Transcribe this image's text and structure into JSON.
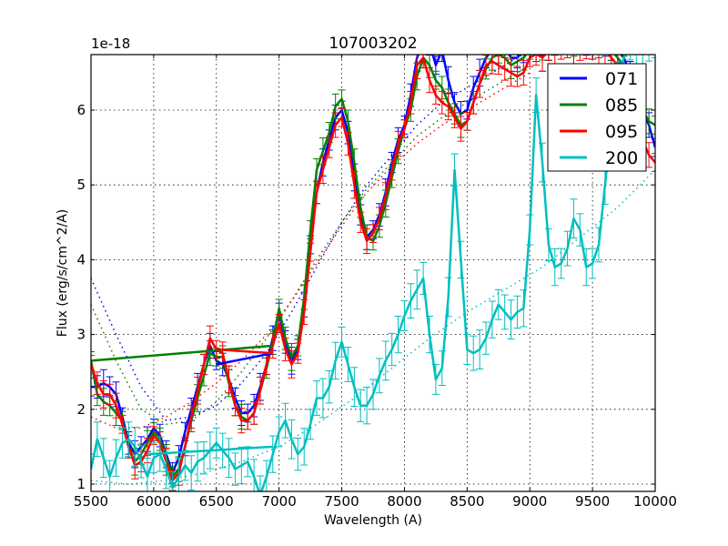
{
  "chart_data": {
    "type": "line",
    "title": "107003202",
    "xlabel": "Wavelength (A)",
    "ylabel": "Flux (erg/s/cm^2/A)",
    "y_offset_label": "1e-18",
    "xlim": [
      5500,
      10000
    ],
    "ylim": [
      0.9,
      6.75
    ],
    "x_ticks": [
      "5500",
      "6000",
      "6500",
      "7000",
      "7500",
      "8000",
      "8500",
      "9000",
      "9500",
      "10000"
    ],
    "y_ticks": [
      "1",
      "2",
      "3",
      "4",
      "5",
      "6"
    ],
    "grid": true,
    "legend_position": "upper right",
    "series": [
      {
        "name": "071",
        "color": "#0000ff",
        "x": [
          5500,
          5550,
          5600,
          5650,
          5700,
          5750,
          5800,
          5850,
          5900,
          5950,
          6000,
          6050,
          6100,
          6150,
          6200,
          6250,
          6300,
          6350,
          6400,
          6450,
          6500,
          6550,
          6600,
          6650,
          6700,
          6750,
          6800,
          6850,
          6900,
          6950,
          7000,
          7050,
          7100,
          7150,
          7200,
          7250,
          7300,
          7350,
          7400,
          7450,
          7500,
          7550,
          7600,
          7650,
          7700,
          7750,
          7800,
          7850,
          7900,
          7950,
          8000,
          8050,
          8100,
          8150,
          8200,
          8250,
          8300,
          8350,
          8400,
          8450,
          8500,
          8550,
          8600,
          8650,
          8700,
          8750,
          8800,
          8850,
          8900,
          8950,
          9000,
          9050,
          9100,
          9150,
          9200,
          9250,
          9300,
          9350,
          9400,
          9450,
          9500,
          9550,
          9600,
          9650,
          9700,
          9750,
          9800,
          9850,
          9900,
          9950,
          10000
        ],
        "y": [
          2.3,
          2.3,
          2.35,
          2.3,
          2.2,
          1.9,
          1.55,
          1.4,
          1.5,
          1.6,
          1.75,
          1.65,
          1.4,
          1.15,
          1.35,
          1.7,
          2.0,
          2.3,
          2.6,
          2.85,
          2.65,
          2.6,
          2.4,
          2.15,
          1.95,
          1.95,
          2.05,
          2.3,
          2.6,
          2.95,
          3.3,
          2.9,
          2.65,
          2.8,
          3.4,
          4.2,
          4.9,
          5.3,
          5.6,
          5.9,
          6.0,
          5.7,
          5.1,
          4.6,
          4.3,
          4.4,
          4.6,
          4.9,
          5.3,
          5.6,
          5.8,
          6.2,
          6.7,
          6.9,
          6.9,
          6.6,
          6.8,
          6.4,
          6.1,
          5.95,
          6.0,
          6.3,
          6.5,
          6.7,
          6.8,
          6.9,
          6.85,
          6.7,
          6.7,
          6.8,
          6.9,
          6.8,
          6.7,
          6.8,
          6.9,
          6.9,
          6.9,
          6.8,
          6.9,
          6.9,
          6.8,
          6.9,
          6.9,
          6.8,
          6.8,
          6.7,
          6.5,
          6.2,
          6.0,
          5.8,
          5.5
        ]
      },
      {
        "name": "085",
        "color": "#008000",
        "x": [
          5500,
          5550,
          5600,
          5650,
          5700,
          5750,
          5800,
          5850,
          5900,
          5950,
          6000,
          6050,
          6100,
          6150,
          6200,
          6250,
          6300,
          6350,
          6400,
          6450,
          6500,
          6550,
          6600,
          6650,
          6700,
          6750,
          6800,
          6850,
          6900,
          6950,
          7000,
          7050,
          7100,
          7150,
          7200,
          7250,
          7300,
          7350,
          7400,
          7450,
          7500,
          7550,
          7600,
          7650,
          7700,
          7750,
          7800,
          7850,
          7900,
          7950,
          8000,
          8050,
          8100,
          8150,
          8200,
          8250,
          8300,
          8350,
          8400,
          8450,
          8500,
          8550,
          8600,
          8650,
          8700,
          8750,
          8800,
          8850,
          8900,
          8950,
          9000,
          9050,
          9100,
          9150,
          9200,
          9250,
          9300,
          9350,
          9400,
          9450,
          9500,
          9550,
          9600,
          9650,
          9700,
          9750,
          9800,
          9850,
          9900,
          9950,
          10000
        ],
        "y": [
          2.65,
          2.2,
          2.1,
          2.05,
          1.95,
          1.85,
          1.5,
          1.3,
          1.4,
          1.55,
          1.7,
          1.6,
          1.35,
          1.1,
          1.2,
          1.5,
          1.85,
          2.15,
          2.45,
          2.75,
          2.7,
          2.7,
          2.35,
          2.05,
          1.9,
          1.85,
          1.95,
          2.25,
          2.55,
          2.9,
          3.35,
          2.95,
          2.7,
          2.85,
          3.5,
          4.4,
          5.2,
          5.45,
          5.7,
          6.05,
          6.15,
          5.85,
          5.3,
          4.7,
          4.3,
          4.25,
          4.45,
          4.75,
          5.1,
          5.45,
          5.75,
          6.0,
          6.45,
          6.7,
          6.6,
          6.4,
          6.3,
          6.1,
          5.95,
          5.8,
          5.85,
          6.1,
          6.35,
          6.55,
          6.7,
          6.75,
          6.7,
          6.6,
          6.65,
          6.7,
          6.8,
          6.8,
          6.85,
          6.8,
          6.9,
          6.9,
          6.95,
          6.9,
          6.9,
          6.95,
          6.9,
          6.85,
          6.95,
          6.8,
          6.7,
          6.6,
          6.4,
          6.2,
          6.0,
          5.85,
          5.8
        ]
      },
      {
        "name": "095",
        "color": "#ff0000",
        "x": [
          5500,
          5550,
          5600,
          5650,
          5700,
          5750,
          5800,
          5850,
          5900,
          5950,
          6000,
          6050,
          6100,
          6150,
          6200,
          6250,
          6300,
          6350,
          6400,
          6450,
          6500,
          6550,
          6600,
          6650,
          6700,
          6750,
          6800,
          6850,
          6900,
          6950,
          7000,
          7050,
          7100,
          7150,
          7200,
          7250,
          7300,
          7350,
          7400,
          7450,
          7500,
          7550,
          7600,
          7650,
          7700,
          7750,
          7800,
          7850,
          7900,
          7950,
          8000,
          8050,
          8100,
          8150,
          8200,
          8250,
          8300,
          8350,
          8400,
          8450,
          8500,
          8550,
          8600,
          8650,
          8700,
          8750,
          8800,
          8850,
          8900,
          8950,
          9000,
          9050,
          9100,
          9150,
          9200,
          9250,
          9300,
          9350,
          9400,
          9450,
          9500,
          9550,
          9600,
          9650,
          9700,
          9750,
          9800,
          9850,
          9900,
          9950,
          10000
        ],
        "y": [
          2.6,
          2.35,
          2.2,
          2.2,
          2.05,
          1.8,
          1.5,
          1.25,
          1.3,
          1.45,
          1.65,
          1.55,
          1.3,
          1.05,
          1.15,
          1.5,
          1.9,
          2.25,
          2.6,
          2.95,
          2.8,
          2.75,
          2.4,
          2.05,
          1.85,
          1.85,
          1.95,
          2.25,
          2.6,
          2.85,
          3.15,
          2.8,
          2.6,
          2.75,
          3.3,
          4.1,
          4.9,
          5.2,
          5.5,
          5.8,
          5.9,
          5.55,
          5.0,
          4.5,
          4.25,
          4.35,
          4.55,
          4.85,
          5.2,
          5.55,
          5.75,
          6.1,
          6.6,
          6.7,
          6.4,
          6.2,
          6.1,
          6.05,
          5.9,
          5.75,
          5.85,
          6.1,
          6.35,
          6.6,
          6.65,
          6.6,
          6.55,
          6.5,
          6.45,
          6.5,
          6.7,
          6.75,
          6.7,
          6.8,
          6.75,
          6.8,
          6.85,
          6.8,
          6.8,
          6.85,
          6.8,
          6.75,
          6.8,
          6.7,
          6.6,
          6.4,
          6.1,
          5.9,
          5.6,
          5.4,
          5.3
        ]
      },
      {
        "name": "200",
        "color": "#00bfbf",
        "x": [
          5500,
          5550,
          5600,
          5650,
          5700,
          5750,
          5800,
          5850,
          5900,
          5950,
          6000,
          6050,
          6100,
          6150,
          6200,
          6250,
          6300,
          6350,
          6400,
          6450,
          6500,
          6550,
          6600,
          6650,
          6700,
          6750,
          6800,
          6850,
          6900,
          6950,
          7000,
          7050,
          7100,
          7150,
          7200,
          7250,
          7300,
          7350,
          7400,
          7450,
          7500,
          7550,
          7600,
          7650,
          7700,
          7750,
          7800,
          7850,
          7900,
          7950,
          8000,
          8050,
          8100,
          8150,
          8200,
          8250,
          8300,
          8350,
          8400,
          8450,
          8500,
          8550,
          8600,
          8650,
          8700,
          8750,
          8800,
          8850,
          8900,
          8950,
          9000,
          9050,
          9100,
          9150,
          9200,
          9250,
          9300,
          9350,
          9400,
          9450,
          9500,
          9550,
          9600,
          9650,
          9700,
          9750,
          9800,
          9850,
          9900,
          9950,
          10000
        ],
        "y": [
          1.2,
          1.6,
          1.35,
          1.1,
          1.35,
          1.55,
          1.6,
          1.5,
          1.3,
          1.1,
          1.35,
          1.4,
          1.2,
          0.95,
          1.1,
          1.25,
          1.15,
          1.3,
          1.35,
          1.45,
          1.55,
          1.45,
          1.35,
          1.2,
          1.25,
          1.3,
          1.1,
          0.85,
          1.1,
          1.4,
          1.7,
          1.85,
          1.6,
          1.4,
          1.5,
          1.8,
          2.15,
          2.15,
          2.3,
          2.65,
          2.9,
          2.6,
          2.3,
          2.05,
          2.05,
          2.2,
          2.45,
          2.65,
          2.8,
          3.0,
          3.25,
          3.45,
          3.6,
          3.75,
          3.0,
          2.4,
          2.55,
          3.5,
          5.2,
          4.0,
          2.8,
          2.75,
          2.8,
          2.95,
          3.2,
          3.4,
          3.3,
          3.2,
          3.3,
          3.35,
          4.4,
          6.2,
          5.3,
          4.2,
          3.9,
          3.95,
          4.15,
          4.55,
          4.4,
          3.9,
          3.95,
          4.2,
          5.0,
          5.8,
          6.4,
          6.7,
          6.9,
          6.8,
          6.75,
          6.9,
          6.9
        ]
      }
    ],
    "fit_curves_dotted": [
      {
        "series": "071",
        "color": "#0000ff",
        "x": [
          5500,
          5700,
          5900,
          6100,
          6300,
          6500,
          6700,
          6900,
          7100,
          7300,
          7500,
          7700,
          7900,
          8100,
          8300,
          8500,
          8700,
          9000
        ],
        "y": [
          3.75,
          3.0,
          2.3,
          1.85,
          1.9,
          2.05,
          2.35,
          2.75,
          3.3,
          3.9,
          4.5,
          5.0,
          5.4,
          5.8,
          6.1,
          6.3,
          6.5,
          6.8
        ]
      },
      {
        "series": "085",
        "color": "#008000",
        "x": [
          5500,
          5700,
          5900,
          6100,
          6300,
          6500,
          6700,
          6900,
          7100,
          7300,
          7500,
          7700,
          7900,
          8100,
          8300,
          8500,
          8700,
          9000
        ],
        "y": [
          3.4,
          2.65,
          2.0,
          1.8,
          1.85,
          2.1,
          2.5,
          2.95,
          3.45,
          4.0,
          4.5,
          4.95,
          5.3,
          5.65,
          5.9,
          6.1,
          6.3,
          6.6
        ]
      },
      {
        "series": "095",
        "color": "#ff0000",
        "x": [
          5500,
          5700,
          5900,
          6100,
          6300,
          6500,
          6700,
          6900,
          7100,
          7300,
          7500,
          7700,
          7900,
          8100,
          8300,
          8500,
          8700,
          9000
        ],
        "y": [
          1.9,
          1.75,
          1.75,
          1.9,
          2.1,
          2.35,
          2.65,
          3.0,
          3.45,
          3.95,
          4.45,
          4.9,
          5.25,
          5.55,
          5.8,
          6.0,
          6.2,
          6.5
        ]
      },
      {
        "series": "200",
        "color": "#00bfbf",
        "x": [
          5500,
          5800,
          6100,
          6400,
          6700,
          7000,
          7300,
          7600,
          7900,
          8200,
          8500,
          8800,
          9100,
          9400,
          9700,
          10000
        ],
        "y": [
          1.05,
          1.0,
          1.05,
          1.15,
          1.3,
          1.5,
          1.8,
          2.15,
          2.55,
          2.95,
          3.3,
          3.6,
          3.9,
          4.3,
          4.7,
          5.2
        ]
      }
    ],
    "legend": [
      {
        "label": "071",
        "color": "#0000ff"
      },
      {
        "label": "085",
        "color": "#008000"
      },
      {
        "label": "095",
        "color": "#ff0000"
      },
      {
        "label": "200",
        "color": "#00bfbf"
      }
    ]
  }
}
